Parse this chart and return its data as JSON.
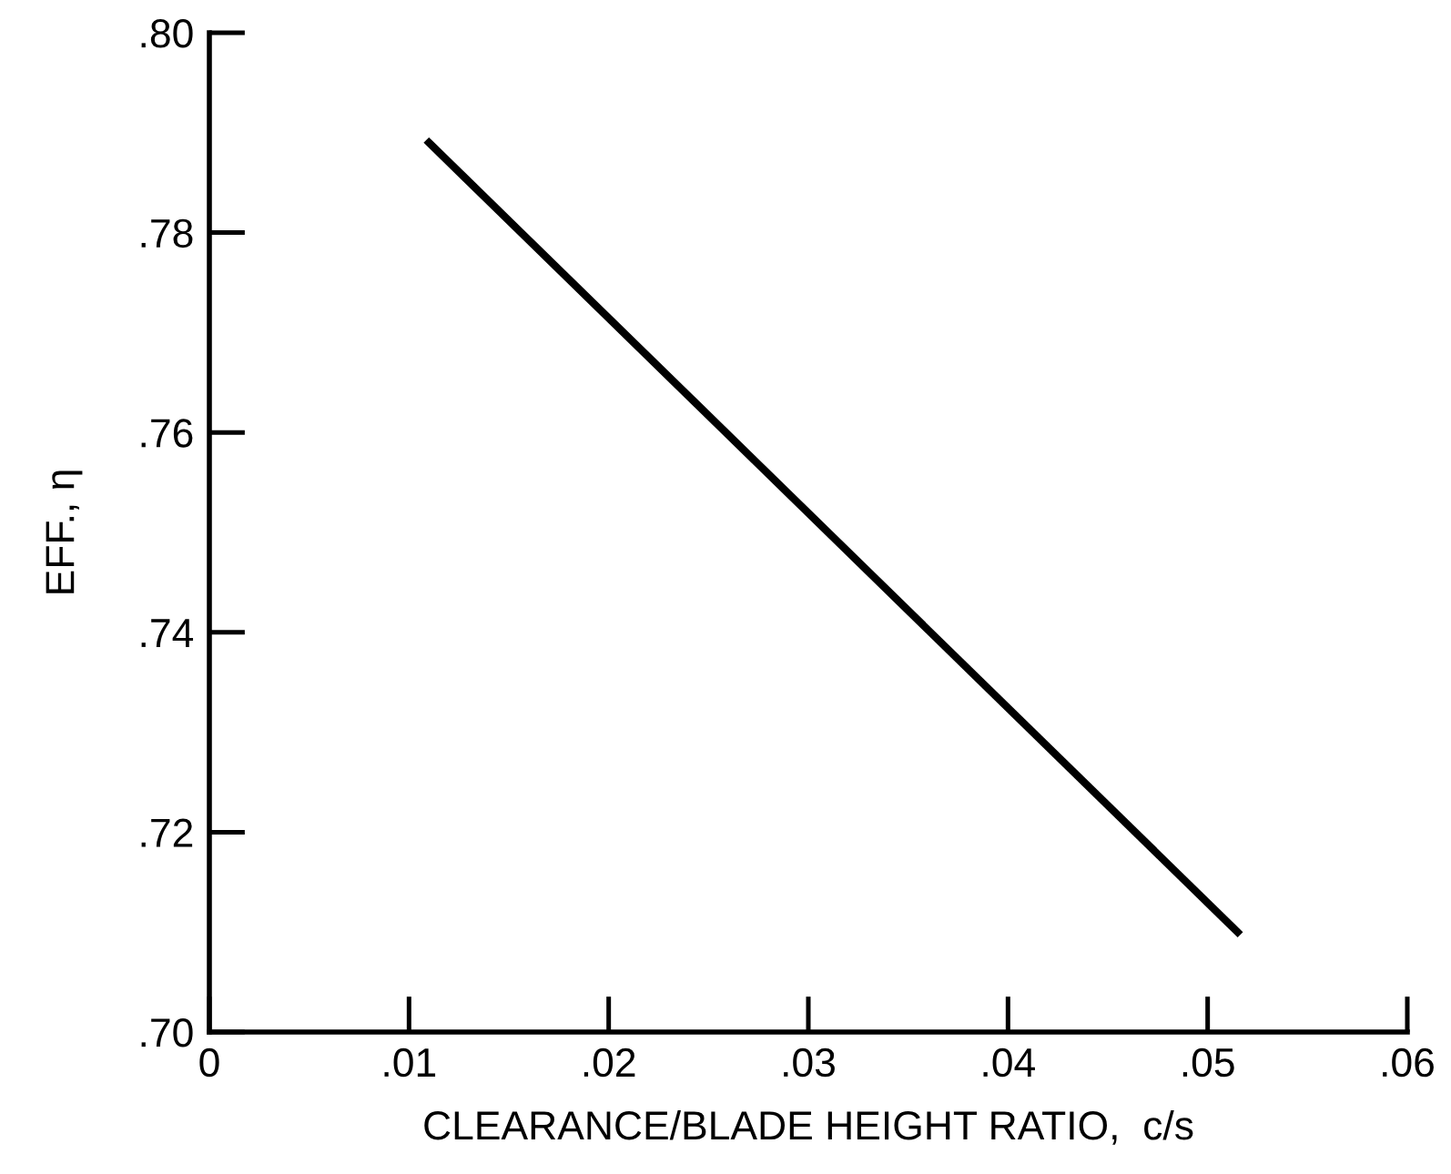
{
  "chart_data": {
    "type": "line",
    "xlabel": "CLEARANCE/BLADE HEIGHT RATIO,  c/s",
    "ylabel": "EFF., η",
    "x": [
      0.011,
      0.0515
    ],
    "series": [
      {
        "color": "#000000",
        "values": [
          0.789,
          0.71
        ]
      }
    ],
    "xlim": [
      0,
      0.06
    ],
    "ylim": [
      0.7,
      0.8
    ],
    "xticks": [
      0,
      {
        "value": 0.01,
        "label": ".01"
      },
      {
        "value": 0.02,
        "label": ".02"
      },
      {
        "value": 0.03,
        "label": ".03"
      },
      {
        "value": 0.04,
        "label": ".04"
      },
      {
        "value": 0.05,
        "label": ".05"
      },
      {
        "value": 0.06,
        "label": ".06"
      }
    ],
    "yticks": [
      {
        "value": 0.7,
        "label": ".70"
      },
      {
        "value": 0.72,
        "label": ".72"
      },
      {
        "value": 0.74,
        "label": ".74"
      },
      {
        "value": 0.76,
        "label": ".76"
      },
      {
        "value": 0.78,
        "label": ".78"
      },
      {
        "value": 0.8,
        "label": ".80"
      }
    ],
    "grid": false,
    "legend": false,
    "marker": "none",
    "line_style": "solid"
  }
}
